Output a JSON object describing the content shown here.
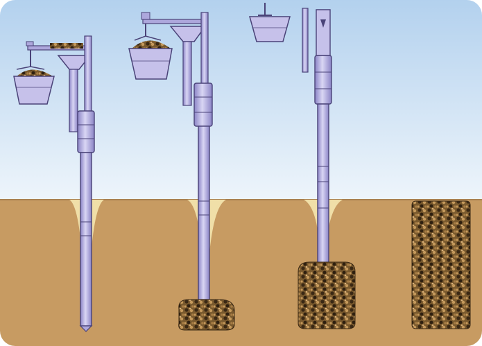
{
  "colors": {
    "sky_top": "#b3d1ee",
    "sky_bottom": "#eef5fb",
    "ground": "#c79b62",
    "ground_edge": "#a98050",
    "hole_sand": "#f0dfa8",
    "probe_fill": "#ada7dc",
    "probe_highlight": "#d9d6f4",
    "probe_line": "#4a4378",
    "bucket_fill": "#c6c1ea",
    "gravel_dark": "#3a2814",
    "gravel_mid": "#7a5a2e",
    "gravel_light": "#c69a5c"
  },
  "stages": [
    {
      "id": "stage-1",
      "bucket": "loaded-low",
      "hopper": "funnel",
      "column_fill": 0.0
    },
    {
      "id": "stage-2",
      "bucket": "loaded-high",
      "hopper": "funnel",
      "column_fill": 0.15
    },
    {
      "id": "stage-3",
      "bucket": "emptied-raised",
      "hopper": "open-tube",
      "column_fill": 0.4
    },
    {
      "id": "stage-4",
      "bucket": "none",
      "hopper": "none",
      "column_fill": 1.0
    }
  ]
}
